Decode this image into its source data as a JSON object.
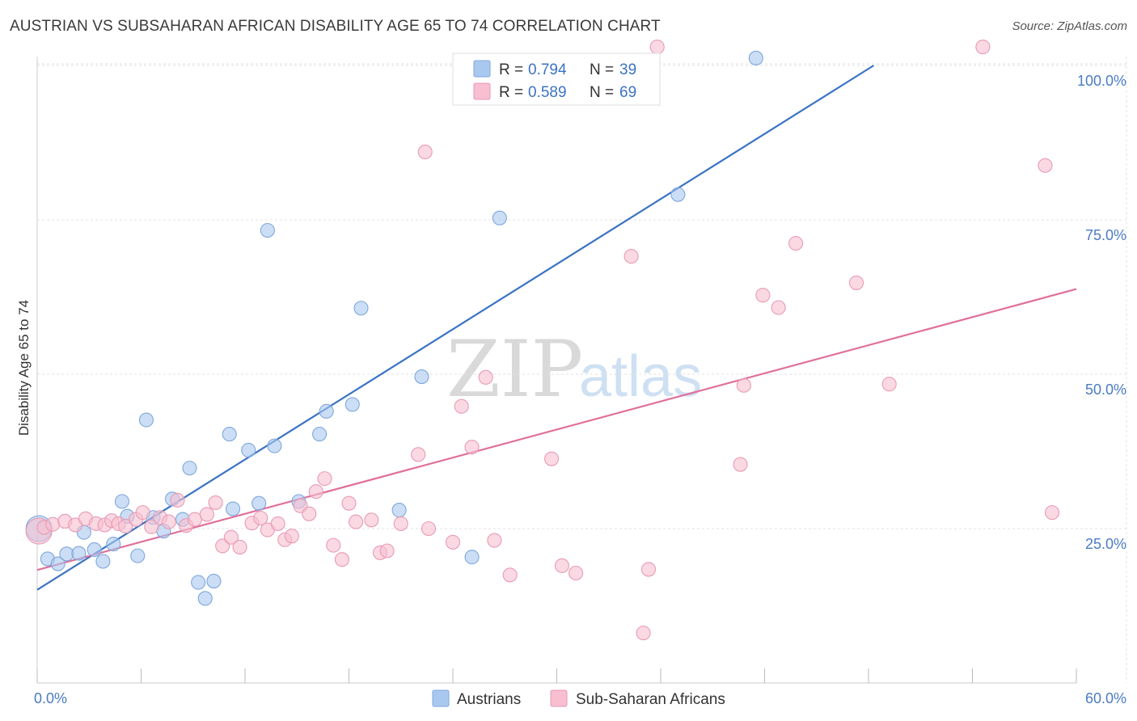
{
  "title": "AUSTRIAN VS SUBSAHARAN AFRICAN DISABILITY AGE 65 TO 74 CORRELATION CHART",
  "source": "Source: ZipAtlas.com",
  "watermark": {
    "zip": "ZIP",
    "atlas": "atlas"
  },
  "legend": {
    "r_label": "R =",
    "n_label": "N =",
    "rows": [
      {
        "r": "0.794",
        "n": "39",
        "color": "#a9c8ef",
        "stroke": "#7fa7dd"
      },
      {
        "r": "0.589",
        "n": "69",
        "color": "#f7bfd0",
        "stroke": "#e99ab3"
      }
    ]
  },
  "bottom_legend": [
    {
      "name": "Austrians",
      "color": "#a9c8ef",
      "stroke": "#7fa7dd"
    },
    {
      "name": "Sub-Saharan Africans",
      "color": "#f7bfd0",
      "stroke": "#e99ab3"
    }
  ],
  "chart_data": {
    "type": "scatter",
    "xlabel": "",
    "ylabel": "Disability Age 65 to 74",
    "xlim": [
      0,
      60
    ],
    "ylim": [
      0,
      103
    ],
    "x_tick_labels": [
      {
        "value": 0,
        "label": "0.0%"
      },
      {
        "value": 60,
        "label": "60.0%"
      }
    ],
    "y_tick_labels": [
      {
        "value": 25,
        "label": "25.0%"
      },
      {
        "value": 50,
        "label": "50.0%"
      },
      {
        "value": 75,
        "label": "75.0%"
      },
      {
        "value": 100,
        "label": "100.0%"
      }
    ],
    "grid": true,
    "legend_position": "top-center",
    "series": [
      {
        "name": "Austrians",
        "color": "#a9c8ef",
        "stroke": "#7fa7dd",
        "line_color": "#3b73c4",
        "trend": {
          "x": [
            0,
            48.3
          ],
          "y": [
            15.1,
            100.0
          ]
        },
        "points": [
          {
            "x": 0.1,
            "y": 25.0,
            "big": true
          },
          {
            "x": 0.6,
            "y": 20.1
          },
          {
            "x": 1.2,
            "y": 19.3
          },
          {
            "x": 1.7,
            "y": 20.9
          },
          {
            "x": 2.4,
            "y": 21.0
          },
          {
            "x": 2.7,
            "y": 24.4
          },
          {
            "x": 3.3,
            "y": 21.6
          },
          {
            "x": 3.8,
            "y": 19.7
          },
          {
            "x": 4.4,
            "y": 22.5
          },
          {
            "x": 4.9,
            "y": 29.4
          },
          {
            "x": 5.2,
            "y": 27.0
          },
          {
            "x": 5.8,
            "y": 20.6
          },
          {
            "x": 6.3,
            "y": 42.6
          },
          {
            "x": 6.7,
            "y": 26.8
          },
          {
            "x": 7.3,
            "y": 24.6
          },
          {
            "x": 7.8,
            "y": 29.8
          },
          {
            "x": 8.4,
            "y": 26.5
          },
          {
            "x": 8.8,
            "y": 34.8
          },
          {
            "x": 9.3,
            "y": 16.3
          },
          {
            "x": 9.7,
            "y": 13.7
          },
          {
            "x": 10.2,
            "y": 16.5
          },
          {
            "x": 11.1,
            "y": 40.3
          },
          {
            "x": 11.3,
            "y": 28.2
          },
          {
            "x": 12.2,
            "y": 37.7
          },
          {
            "x": 12.8,
            "y": 29.1
          },
          {
            "x": 13.3,
            "y": 73.3
          },
          {
            "x": 13.7,
            "y": 38.4
          },
          {
            "x": 15.1,
            "y": 29.4
          },
          {
            "x": 16.3,
            "y": 40.3
          },
          {
            "x": 16.7,
            "y": 44.0
          },
          {
            "x": 18.2,
            "y": 45.1
          },
          {
            "x": 18.7,
            "y": 60.7
          },
          {
            "x": 20.9,
            "y": 28.0
          },
          {
            "x": 22.2,
            "y": 49.6
          },
          {
            "x": 25.1,
            "y": 20.4
          },
          {
            "x": 26.7,
            "y": 75.3
          },
          {
            "x": 37.0,
            "y": 79.1
          },
          {
            "x": 41.5,
            "y": 101.2
          }
        ]
      },
      {
        "name": "Sub-Saharan Africans",
        "color": "#f7bfd0",
        "stroke": "#e99ab3",
        "line_color": "#e0709a",
        "trend": {
          "x": [
            0,
            60
          ],
          "y": [
            18.3,
            63.8
          ]
        },
        "points": [
          {
            "x": 0.1,
            "y": 24.6,
            "big": true
          },
          {
            "x": 0.4,
            "y": 25.2
          },
          {
            "x": 0.9,
            "y": 25.7
          },
          {
            "x": 1.6,
            "y": 26.2
          },
          {
            "x": 2.2,
            "y": 25.6
          },
          {
            "x": 2.8,
            "y": 26.6
          },
          {
            "x": 3.4,
            "y": 25.8
          },
          {
            "x": 3.9,
            "y": 25.6
          },
          {
            "x": 4.3,
            "y": 26.3
          },
          {
            "x": 4.7,
            "y": 25.8
          },
          {
            "x": 5.1,
            "y": 25.4
          },
          {
            "x": 5.7,
            "y": 26.5
          },
          {
            "x": 6.1,
            "y": 27.6
          },
          {
            "x": 6.6,
            "y": 25.3
          },
          {
            "x": 7.1,
            "y": 26.8
          },
          {
            "x": 7.6,
            "y": 26.1
          },
          {
            "x": 8.1,
            "y": 29.6
          },
          {
            "x": 8.6,
            "y": 25.5
          },
          {
            "x": 9.1,
            "y": 26.5
          },
          {
            "x": 9.8,
            "y": 27.3
          },
          {
            "x": 10.3,
            "y": 29.2
          },
          {
            "x": 10.7,
            "y": 22.2
          },
          {
            "x": 11.2,
            "y": 23.6
          },
          {
            "x": 11.7,
            "y": 22.0
          },
          {
            "x": 12.4,
            "y": 25.9
          },
          {
            "x": 12.9,
            "y": 26.7
          },
          {
            "x": 13.3,
            "y": 24.8
          },
          {
            "x": 13.9,
            "y": 25.8
          },
          {
            "x": 14.3,
            "y": 23.2
          },
          {
            "x": 14.7,
            "y": 23.8
          },
          {
            "x": 15.2,
            "y": 28.7
          },
          {
            "x": 15.7,
            "y": 27.4
          },
          {
            "x": 16.1,
            "y": 31.0
          },
          {
            "x": 16.6,
            "y": 33.1
          },
          {
            "x": 17.1,
            "y": 22.3
          },
          {
            "x": 17.6,
            "y": 20.0
          },
          {
            "x": 18.0,
            "y": 29.1
          },
          {
            "x": 18.4,
            "y": 26.1
          },
          {
            "x": 19.3,
            "y": 26.4
          },
          {
            "x": 19.8,
            "y": 21.1
          },
          {
            "x": 20.2,
            "y": 21.4
          },
          {
            "x": 21.0,
            "y": 25.8
          },
          {
            "x": 22.4,
            "y": 86.0
          },
          {
            "x": 22.0,
            "y": 37.0
          },
          {
            "x": 22.6,
            "y": 25.0
          },
          {
            "x": 24.0,
            "y": 22.8
          },
          {
            "x": 24.5,
            "y": 44.8
          },
          {
            "x": 25.1,
            "y": 38.2
          },
          {
            "x": 25.9,
            "y": 49.5
          },
          {
            "x": 26.4,
            "y": 23.1
          },
          {
            "x": 27.3,
            "y": 17.5
          },
          {
            "x": 29.7,
            "y": 36.3
          },
          {
            "x": 30.3,
            "y": 19.0
          },
          {
            "x": 31.1,
            "y": 17.8
          },
          {
            "x": 34.3,
            "y": 69.1
          },
          {
            "x": 35.0,
            "y": 8.1
          },
          {
            "x": 35.3,
            "y": 18.4
          },
          {
            "x": 35.8,
            "y": 103.0
          },
          {
            "x": 40.6,
            "y": 35.4
          },
          {
            "x": 40.8,
            "y": 48.2
          },
          {
            "x": 41.9,
            "y": 62.8
          },
          {
            "x": 42.8,
            "y": 60.8
          },
          {
            "x": 43.8,
            "y": 71.2
          },
          {
            "x": 47.3,
            "y": 64.8
          },
          {
            "x": 49.2,
            "y": 48.4
          },
          {
            "x": 54.6,
            "y": 103.0
          },
          {
            "x": 58.2,
            "y": 83.8
          },
          {
            "x": 58.6,
            "y": 27.6
          }
        ]
      }
    ]
  }
}
